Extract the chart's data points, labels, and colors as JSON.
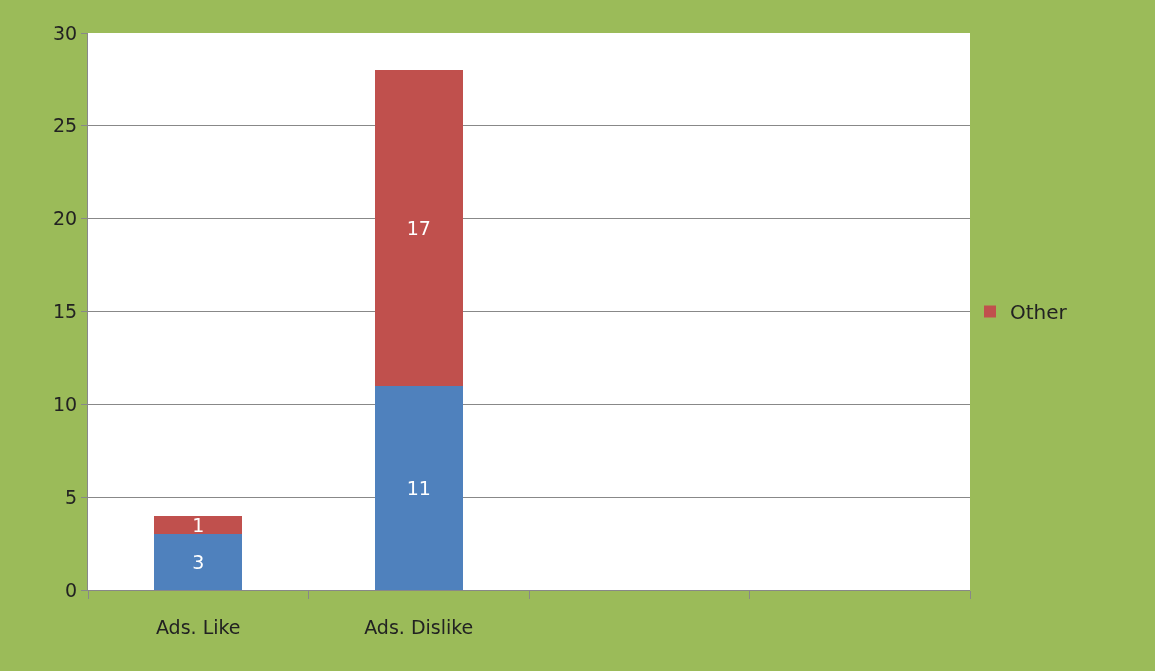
{
  "chart_data": {
    "type": "bar",
    "stacked": true,
    "categories": [
      "Ads. Like",
      "Ads. Dislike",
      null,
      null
    ],
    "series": [
      {
        "color": "#4f81bd",
        "values": [
          3,
          11,
          null,
          null
        ]
      },
      {
        "name": "Other",
        "color": "#c0504d",
        "values": [
          1,
          17,
          null,
          null
        ]
      }
    ],
    "ylim": [
      0,
      30
    ],
    "yticks": [
      0,
      5,
      10,
      15,
      20,
      25,
      30
    ],
    "grid": "y",
    "legend": "right",
    "data_labels": true
  }
}
